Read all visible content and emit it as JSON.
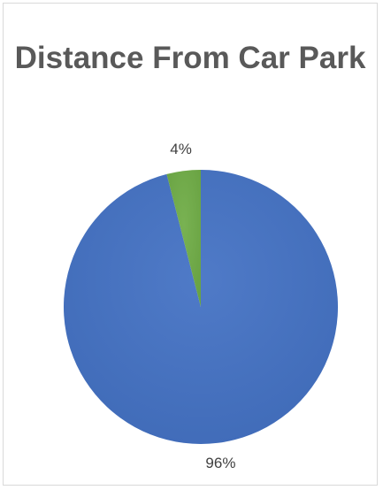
{
  "chart_data": {
    "type": "pie",
    "title": "Distance From Car Park",
    "categories": [
      "",
      ""
    ],
    "values": [
      96,
      4
    ],
    "data_labels": [
      "96%",
      "4%"
    ],
    "colors": [
      "#4472c4",
      "#70ad47"
    ],
    "legend": "none"
  }
}
